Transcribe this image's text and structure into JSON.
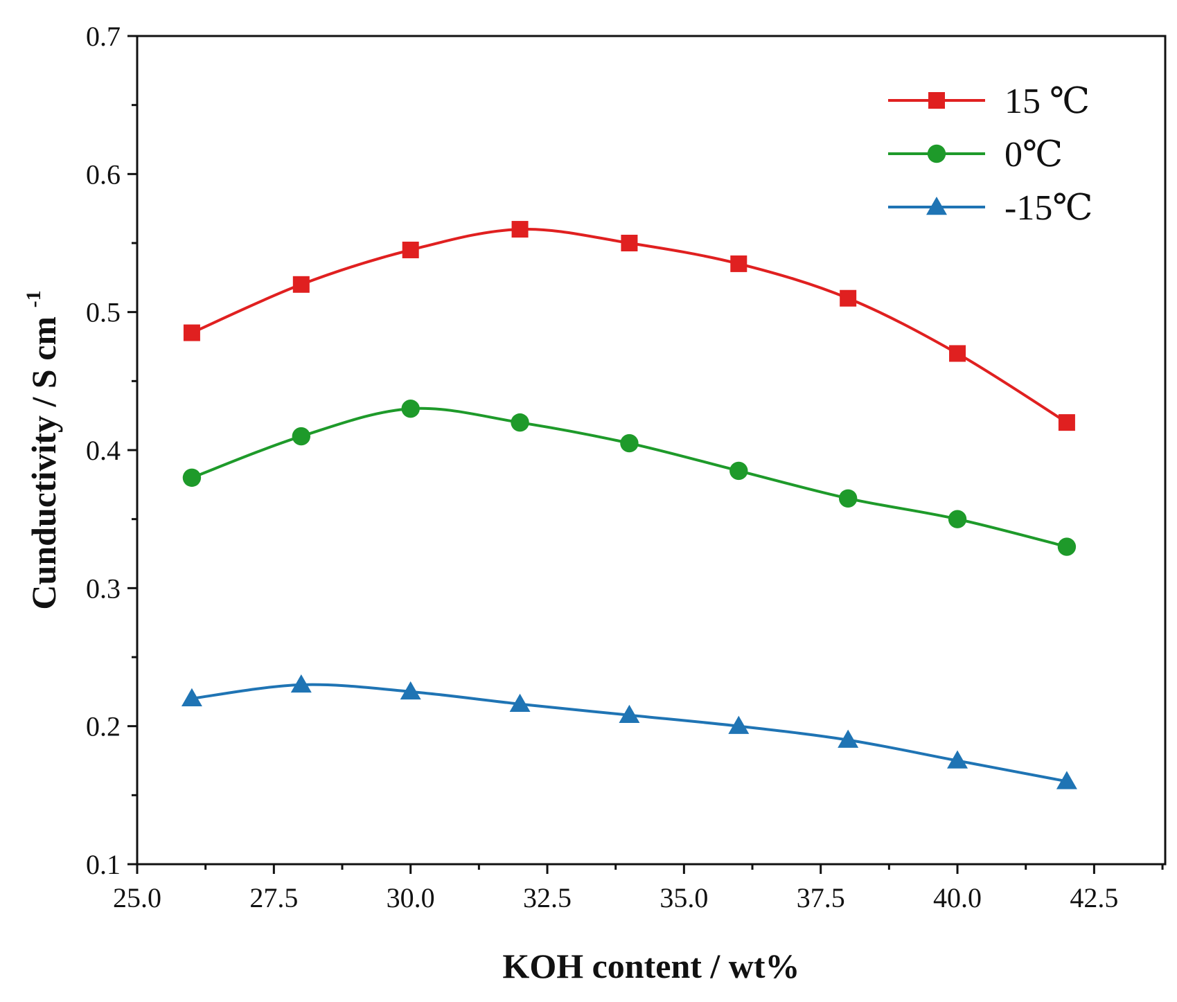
{
  "chart_data": {
    "type": "line",
    "title": "",
    "xlabel": "KOH content / wt%",
    "ylabel": "Cunductivity / S cm",
    "ylabel_superscript": "-1",
    "xlim": [
      25.0,
      43.8
    ],
    "ylim": [
      0.1,
      0.7
    ],
    "xticks": [
      25.0,
      27.5,
      30.0,
      32.5,
      35.0,
      37.5,
      40.0,
      42.5
    ],
    "xtick_labels": [
      "25.0",
      "27.5",
      "30.0",
      "32.5",
      "35.0",
      "37.5",
      "40.0",
      "42.5"
    ],
    "yticks": [
      0.1,
      0.2,
      0.3,
      0.4,
      0.5,
      0.6,
      0.7
    ],
    "ytick_labels": [
      "0.1",
      "0.2",
      "0.3",
      "0.4",
      "0.5",
      "0.6",
      "0.7"
    ],
    "grid": false,
    "legend_position": "top-right",
    "x": [
      26,
      28,
      30,
      32,
      34,
      36,
      38,
      40,
      42
    ],
    "series": [
      {
        "name": "15 ℃",
        "color": "#e02020",
        "marker": "square",
        "values": [
          0.485,
          0.52,
          0.545,
          0.56,
          0.55,
          0.535,
          0.51,
          0.47,
          0.42
        ]
      },
      {
        "name": "0℃",
        "color": "#1e9a2a",
        "marker": "circle",
        "values": [
          0.38,
          0.41,
          0.43,
          0.42,
          0.405,
          0.385,
          0.365,
          0.35,
          0.33
        ]
      },
      {
        "name": "-15℃",
        "color": "#1f74b4",
        "marker": "triangle",
        "values": [
          0.22,
          0.23,
          0.225,
          0.216,
          0.208,
          0.2,
          0.19,
          0.175,
          0.16
        ]
      }
    ]
  }
}
